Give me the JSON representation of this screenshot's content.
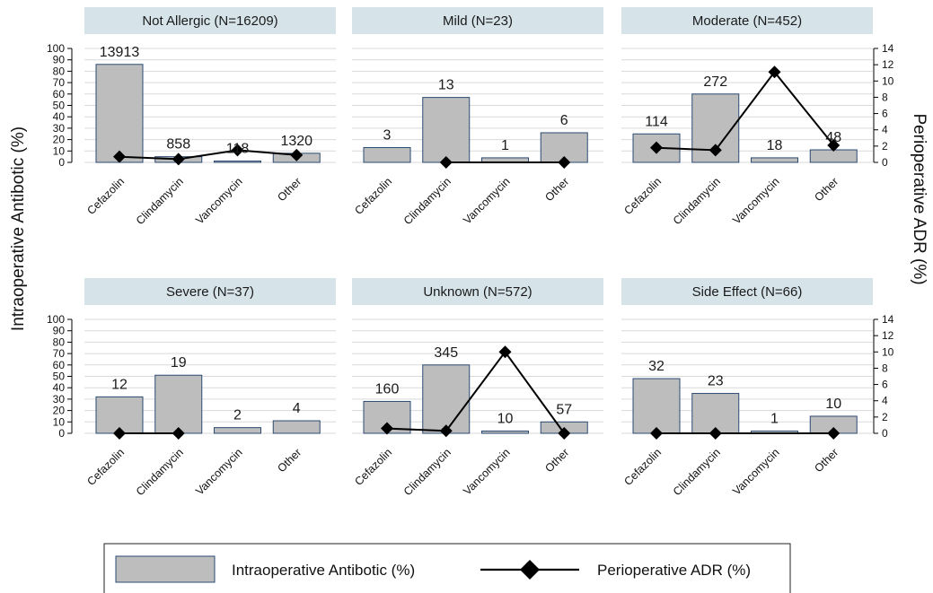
{
  "figure": {
    "ylabel_left": "Intraoperative Antibotic (%)",
    "ylabel_right": "Perioperative ADR (%)"
  },
  "legend": {
    "bar_label": "Intraoperative Antibotic (%)",
    "line_label": "Perioperative ADR (%)"
  },
  "colors": {
    "bar_fill": "#bdbdbd",
    "bar_stroke": "#2b4a72",
    "line": "#000000",
    "header_bg": "#d6e4ea",
    "grid": "#d9d9d9"
  },
  "chart_data": [
    {
      "type": "bar",
      "title": "Not Allergic (N=16209)",
      "categories": [
        "Cefazolin",
        "Clindamycin",
        "Vancomycin",
        "Other"
      ],
      "series": [
        {
          "name": "Intraoperative Antibotic (%)",
          "axis": "left",
          "values": [
            86,
            5,
            1,
            8
          ],
          "labels": [
            "13913",
            "858",
            "118",
            "1320"
          ]
        },
        {
          "name": "Perioperative ADR (%)",
          "axis": "right",
          "type": "line",
          "values": [
            0.7,
            0.4,
            1.5,
            0.9
          ]
        }
      ],
      "ylim": [
        0,
        100
      ],
      "y2lim": [
        0,
        14
      ]
    },
    {
      "type": "bar",
      "title": "Mild (N=23)",
      "categories": [
        "Cefazolin",
        "Clindamycin",
        "Vancomycin",
        "Other"
      ],
      "series": [
        {
          "name": "Intraoperative Antibotic (%)",
          "axis": "left",
          "values": [
            13,
            57,
            4,
            26
          ],
          "labels": [
            "3",
            "13",
            "1",
            "6"
          ]
        },
        {
          "name": "Perioperative ADR (%)",
          "axis": "right",
          "type": "line",
          "points": [
            [
              1,
              0
            ],
            [
              3,
              0
            ]
          ]
        }
      ],
      "ylim": [
        0,
        100
      ],
      "y2lim": [
        0,
        14
      ]
    },
    {
      "type": "bar",
      "title": "Moderate (N=452)",
      "categories": [
        "Cefazolin",
        "Clindamycin",
        "Vancomycin",
        "Other"
      ],
      "series": [
        {
          "name": "Intraoperative Antibotic (%)",
          "axis": "left",
          "values": [
            25,
            60,
            4,
            11
          ],
          "labels": [
            "114",
            "272",
            "18",
            "48"
          ]
        },
        {
          "name": "Perioperative ADR (%)",
          "axis": "right",
          "type": "line",
          "values": [
            1.8,
            1.5,
            11.1,
            2.1
          ]
        }
      ],
      "ylim": [
        0,
        100
      ],
      "y2lim": [
        0,
        14
      ]
    },
    {
      "type": "bar",
      "title": "Severe (N=37)",
      "categories": [
        "Cefazolin",
        "Clindamycin",
        "Vancomycin",
        "Other"
      ],
      "series": [
        {
          "name": "Intraoperative Antibotic (%)",
          "axis": "left",
          "values": [
            32,
            51,
            5,
            11
          ],
          "labels": [
            "12",
            "19",
            "2",
            "4"
          ]
        },
        {
          "name": "Perioperative ADR (%)",
          "axis": "right",
          "type": "line",
          "points": [
            [
              0,
              0
            ],
            [
              1,
              0
            ]
          ]
        }
      ],
      "ylim": [
        0,
        100
      ],
      "y2lim": [
        0,
        14
      ]
    },
    {
      "type": "bar",
      "title": "Unknown (N=572)",
      "categories": [
        "Cefazolin",
        "Clindamycin",
        "Vancomycin",
        "Other"
      ],
      "series": [
        {
          "name": "Intraoperative Antibotic (%)",
          "axis": "left",
          "values": [
            28,
            60,
            2,
            10
          ],
          "labels": [
            "160",
            "345",
            "10",
            "57"
          ]
        },
        {
          "name": "Perioperative ADR (%)",
          "axis": "right",
          "type": "line",
          "values": [
            0.6,
            0.3,
            10.0,
            0
          ]
        }
      ],
      "ylim": [
        0,
        100
      ],
      "y2lim": [
        0,
        14
      ]
    },
    {
      "type": "bar",
      "title": "Side Effect (N=66)",
      "categories": [
        "Cefazolin",
        "Clindamycin",
        "Vancomycin",
        "Other"
      ],
      "series": [
        {
          "name": "Intraoperative Antibotic (%)",
          "axis": "left",
          "values": [
            48,
            35,
            2,
            15
          ],
          "labels": [
            "32",
            "23",
            "1",
            "10"
          ]
        },
        {
          "name": "Perioperative ADR (%)",
          "axis": "right",
          "type": "line",
          "points": [
            [
              0,
              0
            ],
            [
              1,
              0
            ],
            [
              3,
              0
            ]
          ]
        }
      ],
      "ylim": [
        0,
        100
      ],
      "y2lim": [
        0,
        14
      ]
    }
  ],
  "axes": {
    "left_ticks": [
      "0",
      "10",
      "20",
      "30",
      "40",
      "50",
      "60",
      "70",
      "80",
      "90",
      "100"
    ],
    "right_ticks": [
      "0",
      "2",
      "4",
      "6",
      "8",
      "10",
      "12",
      "14"
    ]
  }
}
